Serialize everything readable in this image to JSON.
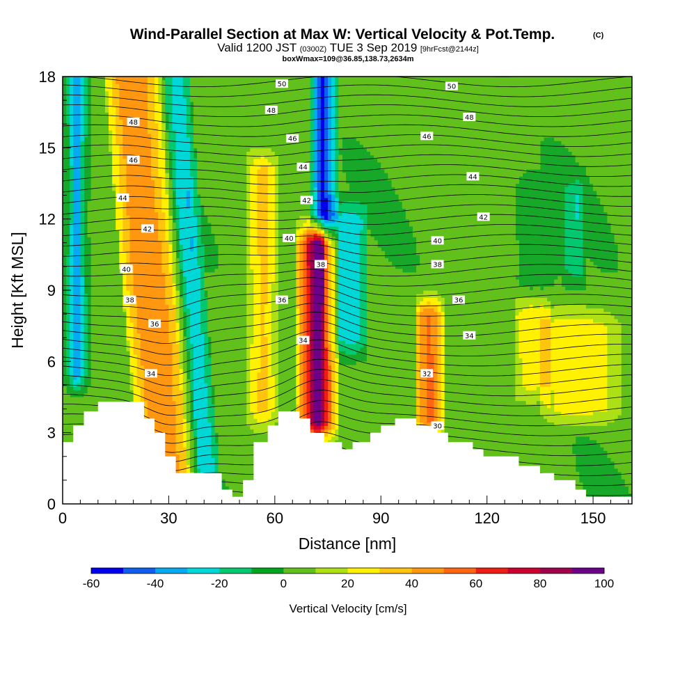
{
  "title": {
    "main": "Wind-Parallel Section at Max W: Vertical Velocity & Pot.Temp.",
    "copyright": "(C)",
    "valid_a": "Valid 1200 JST",
    "valid_b": "(0300Z)",
    "valid_c": "TUE 3 Sep 2019",
    "valid_d": "[9hrFcst@2144z]",
    "box": "boxWmax=109@36.85,138.73,2634m"
  },
  "chart_data": {
    "type": "heatmap",
    "xlabel": "Distance [nm]",
    "ylabel": "Height [Kft MSL]",
    "xlim": [
      0,
      161
    ],
    "ylim": [
      0,
      18
    ],
    "x_ticks": [
      0,
      30,
      60,
      90,
      120,
      150
    ],
    "x_tick_labels": [
      "0",
      "30",
      "60",
      "90",
      "120",
      "150"
    ],
    "y_ticks": [
      0,
      3,
      6,
      9,
      12,
      15,
      18
    ],
    "y_tick_labels": [
      "0",
      "3",
      "6",
      "9",
      "12",
      "15",
      "18"
    ],
    "colorbar": {
      "title": "Vertical Velocity [cm/s]",
      "bounds": [
        -60,
        100
      ],
      "step": 10,
      "tick_values": [
        -60,
        -40,
        -20,
        0,
        20,
        40,
        60,
        80,
        100
      ],
      "tick_labels": [
        "-60",
        "-40",
        "-20",
        "0",
        "20",
        "40",
        "60",
        "80",
        "100"
      ],
      "colors": [
        "#0000ee",
        "#0e5ff0",
        "#06aaf0",
        "#00d8d8",
        "#04c870",
        "#00a51e",
        "#62c01c",
        "#aee016",
        "#fff100",
        "#ffc50e",
        "#ff9810",
        "#ff6612",
        "#ee1e14",
        "#cc0030",
        "#a0004c",
        "#6c0088"
      ]
    },
    "terrain": [
      [
        0,
        2.6
      ],
      [
        3,
        2.6
      ],
      [
        3,
        3.3
      ],
      [
        6,
        3.3
      ],
      [
        6,
        3.9
      ],
      [
        10,
        3.9
      ],
      [
        10,
        4.3
      ],
      [
        23,
        4.3
      ],
      [
        23,
        3.6
      ],
      [
        26,
        3.6
      ],
      [
        26,
        3.0
      ],
      [
        29,
        3.0
      ],
      [
        29,
        2.0
      ],
      [
        32,
        2.0
      ],
      [
        32,
        1.3
      ],
      [
        45,
        1.3
      ],
      [
        45,
        0.6
      ],
      [
        48,
        0.6
      ],
      [
        48,
        0.3
      ],
      [
        51,
        0.3
      ],
      [
        51,
        1.0
      ],
      [
        54,
        1.0
      ],
      [
        54,
        2.6
      ],
      [
        58,
        2.6
      ],
      [
        58,
        3.3
      ],
      [
        61,
        3.3
      ],
      [
        61,
        3.9
      ],
      [
        67,
        3.9
      ],
      [
        67,
        3.6
      ],
      [
        70,
        3.6
      ],
      [
        70,
        3.0
      ],
      [
        74,
        3.0
      ],
      [
        74,
        2.6
      ],
      [
        79,
        2.6
      ],
      [
        79,
        2.3
      ],
      [
        82,
        2.3
      ],
      [
        82,
        2.6
      ],
      [
        87,
        2.6
      ],
      [
        87,
        3.0
      ],
      [
        90,
        3.0
      ],
      [
        90,
        3.3
      ],
      [
        94,
        3.3
      ],
      [
        94,
        3.6
      ],
      [
        100,
        3.6
      ],
      [
        100,
        3.3
      ],
      [
        106,
        3.3
      ],
      [
        106,
        3.0
      ],
      [
        109,
        3.0
      ],
      [
        109,
        2.6
      ],
      [
        116,
        2.6
      ],
      [
        116,
        2.3
      ],
      [
        119,
        2.3
      ],
      [
        119,
        2.0
      ],
      [
        129,
        2.0
      ],
      [
        129,
        1.6
      ],
      [
        135,
        1.6
      ],
      [
        135,
        1.3
      ],
      [
        139,
        1.3
      ],
      [
        139,
        1.0
      ],
      [
        145,
        1.0
      ],
      [
        145,
        0.6
      ],
      [
        148,
        0.6
      ],
      [
        148,
        0.3
      ],
      [
        161,
        0.3
      ]
    ],
    "wbands": [
      {
        "x": [
          0,
          2,
          3,
          4,
          6,
          8
        ],
        "v": [
          -5,
          -18,
          -35,
          -45,
          -18,
          -3
        ],
        "z0": 5.5,
        "z1": 18
      },
      {
        "x": [
          20,
          24,
          28,
          31,
          34,
          37
        ],
        "v": [
          15,
          40,
          45,
          42,
          28,
          8
        ],
        "tilt": -0.6
      },
      {
        "x": [
          34,
          37,
          40,
          43
        ],
        "v": [
          -5,
          -20,
          -30,
          -10
        ],
        "tilt": -0.5
      },
      {
        "x": [
          52,
          55,
          57,
          59,
          61
        ],
        "v": [
          10,
          25,
          30,
          20,
          5
        ],
        "z0": 4,
        "z1": 14
      },
      {
        "x": [
          66,
          69,
          71,
          72,
          73,
          75,
          78
        ],
        "v": [
          20,
          55,
          90,
          102,
          95,
          55,
          18
        ],
        "z0": 3.5,
        "z1": 11
      },
      {
        "x": [
          70,
          72,
          73,
          74,
          76,
          78
        ],
        "v": [
          -15,
          -40,
          -58,
          -55,
          -35,
          -10
        ],
        "z0": 12,
        "z1": 18
      },
      {
        "x": [
          74,
          78,
          82,
          86
        ],
        "v": [
          -10,
          -25,
          -30,
          -15
        ],
        "z0": 7,
        "z1": 12
      },
      {
        "x": [
          100,
          102,
          104,
          106,
          108
        ],
        "v": [
          25,
          45,
          50,
          38,
          15
        ],
        "z0": 3.5,
        "z1": 8
      },
      {
        "x": [
          128,
          133,
          138
        ],
        "v": [
          15,
          22,
          12
        ],
        "z0": 5,
        "z1": 8
      },
      {
        "x": [
          135,
          140,
          147,
          154,
          158
        ],
        "v": [
          10,
          22,
          25,
          18,
          8
        ],
        "z0": 4,
        "z1": 7.5
      },
      {
        "x": [
          128,
          132,
          136,
          140
        ],
        "v": [
          -5,
          -12,
          -10,
          -3
        ],
        "z0": 9.5,
        "z1": 13
      },
      {
        "x": [
          140,
          143,
          146,
          148
        ],
        "v": [
          -3,
          -15,
          -20,
          -5
        ],
        "z0": 10,
        "z1": 13
      }
    ],
    "theta_labels": [
      {
        "x": 20,
        "y": 16.1,
        "text": "48"
      },
      {
        "x": 20,
        "y": 14.5,
        "text": "46"
      },
      {
        "x": 17,
        "y": 12.9,
        "text": "44"
      },
      {
        "x": 24,
        "y": 11.6,
        "text": "42"
      },
      {
        "x": 18,
        "y": 9.9,
        "text": "40"
      },
      {
        "x": 19,
        "y": 8.6,
        "text": "38"
      },
      {
        "x": 26,
        "y": 7.6,
        "text": "36"
      },
      {
        "x": 25,
        "y": 5.5,
        "text": "34"
      },
      {
        "x": 62,
        "y": 17.7,
        "text": "50"
      },
      {
        "x": 59,
        "y": 16.6,
        "text": "48"
      },
      {
        "x": 65,
        "y": 15.4,
        "text": "46"
      },
      {
        "x": 68,
        "y": 14.2,
        "text": "44"
      },
      {
        "x": 69,
        "y": 12.8,
        "text": "42"
      },
      {
        "x": 64,
        "y": 11.2,
        "text": "40"
      },
      {
        "x": 73,
        "y": 10.1,
        "text": "38"
      },
      {
        "x": 62,
        "y": 8.6,
        "text": "36"
      },
      {
        "x": 68,
        "y": 6.9,
        "text": "34"
      },
      {
        "x": 110,
        "y": 17.6,
        "text": "50"
      },
      {
        "x": 115,
        "y": 16.3,
        "text": "48"
      },
      {
        "x": 103,
        "y": 15.5,
        "text": "46"
      },
      {
        "x": 116,
        "y": 13.8,
        "text": "44"
      },
      {
        "x": 119,
        "y": 12.1,
        "text": "42"
      },
      {
        "x": 106,
        "y": 11.1,
        "text": "40"
      },
      {
        "x": 106,
        "y": 10.1,
        "text": "38"
      },
      {
        "x": 112,
        "y": 8.6,
        "text": "36"
      },
      {
        "x": 115,
        "y": 7.1,
        "text": "34"
      },
      {
        "x": 103,
        "y": 5.5,
        "text": "32"
      },
      {
        "x": 106,
        "y": 3.3,
        "text": "30"
      }
    ]
  }
}
